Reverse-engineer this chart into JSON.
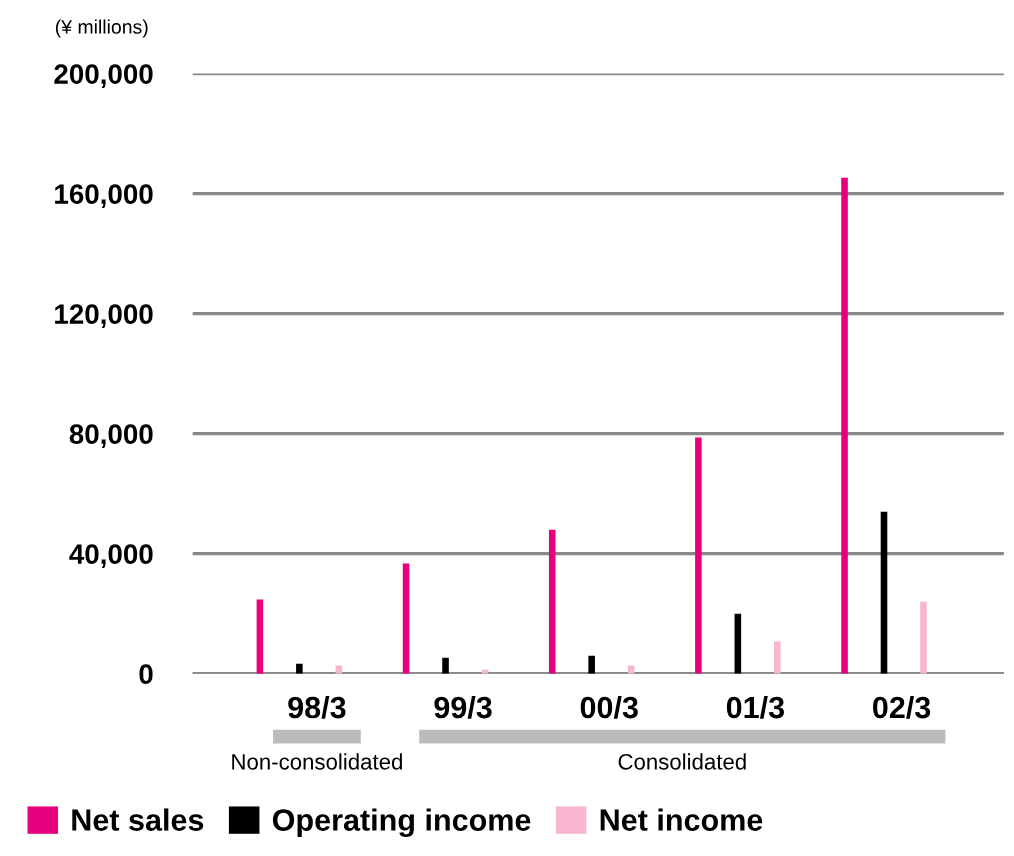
{
  "chart_data": {
    "type": "bar",
    "ylabel": "(¥ millions)",
    "categories": [
      "98/3",
      "99/3",
      "00/3",
      "01/3",
      "02/3"
    ],
    "series": [
      {
        "name": "Net sales",
        "color": "#e6007e",
        "values": [
          24700,
          36700,
          48000,
          78700,
          165300
        ]
      },
      {
        "name": "Operating income",
        "color": "#000000",
        "values": [
          3300,
          5300,
          6000,
          20000,
          54000
        ]
      },
      {
        "name": "Net income",
        "color": "#f6b6cf",
        "values": [
          2700,
          1300,
          2700,
          10700,
          24000
        ]
      }
    ],
    "ylim": [
      0,
      200000
    ],
    "yticks": [
      {
        "value": 0,
        "label": "0"
      },
      {
        "value": 40000,
        "label": "40,000"
      },
      {
        "value": 80000,
        "label": "80,000"
      },
      {
        "value": 120000,
        "label": "120,000"
      },
      {
        "value": 160000,
        "label": "160,000"
      },
      {
        "value": 200000,
        "label": "200,000"
      }
    ],
    "grid": "y",
    "legend": "bottom",
    "annotations": [
      "Non-consolidated",
      "Consolidated"
    ]
  }
}
